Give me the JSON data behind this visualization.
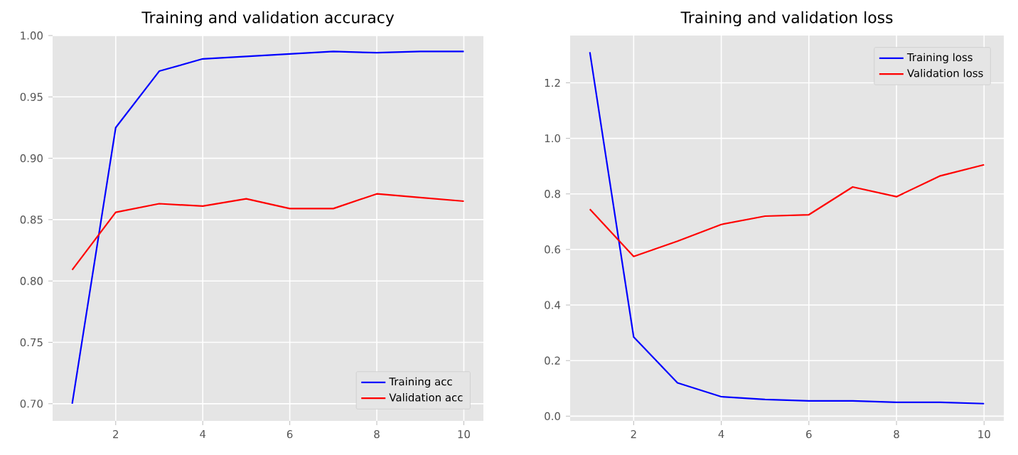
{
  "chart_data": [
    {
      "type": "line",
      "title": "Training and validation accuracy",
      "x": [
        1,
        2,
        3,
        4,
        5,
        6,
        7,
        8,
        9,
        10
      ],
      "series": [
        {
          "name": "Training acc",
          "color": "#0000ff",
          "values": [
            0.7,
            0.925,
            0.971,
            0.981,
            0.983,
            0.985,
            0.987,
            0.986,
            0.987,
            0.987
          ]
        },
        {
          "name": "Validation acc",
          "color": "#ff0000",
          "values": [
            0.809,
            0.856,
            0.863,
            0.861,
            0.867,
            0.859,
            0.859,
            0.871,
            0.868,
            0.865
          ]
        }
      ],
      "xlim": [
        0.55,
        10.45
      ],
      "xticks": [
        2,
        4,
        6,
        8,
        10
      ],
      "ylim": [
        0.686,
        1.0
      ],
      "yticks": [
        {
          "value": 0.7,
          "label": "0.70"
        },
        {
          "value": 0.75,
          "label": "0.75"
        },
        {
          "value": 0.8,
          "label": "0.80"
        },
        {
          "value": 0.85,
          "label": "0.85"
        },
        {
          "value": 0.9,
          "label": "0.90"
        },
        {
          "value": 0.95,
          "label": "0.95"
        },
        {
          "value": 1.0,
          "label": "1.00"
        }
      ],
      "grid": true,
      "legend": "bottom right"
    },
    {
      "type": "line",
      "title": "Training and validation loss",
      "x": [
        1,
        2,
        3,
        4,
        5,
        6,
        7,
        8,
        9,
        10
      ],
      "series": [
        {
          "name": "Training loss",
          "color": "#0000ff",
          "values": [
            1.31,
            0.285,
            0.12,
            0.07,
            0.06,
            0.055,
            0.055,
            0.05,
            0.05,
            0.045
          ]
        },
        {
          "name": "Validation loss",
          "color": "#ff0000",
          "values": [
            0.745,
            0.575,
            0.63,
            0.69,
            0.72,
            0.725,
            0.825,
            0.79,
            0.865,
            0.905
          ]
        }
      ],
      "xlim": [
        0.55,
        10.45
      ],
      "xticks": [
        2,
        4,
        6,
        8,
        10
      ],
      "ylim": [
        -0.017,
        1.37
      ],
      "yticks": [
        {
          "value": 0.0,
          "label": "0.0"
        },
        {
          "value": 0.2,
          "label": "0.2"
        },
        {
          "value": 0.4,
          "label": "0.4"
        },
        {
          "value": 0.6,
          "label": "0.6"
        },
        {
          "value": 0.8,
          "label": "0.8"
        },
        {
          "value": 1.0,
          "label": "1.0"
        },
        {
          "value": 1.2,
          "label": "1.2"
        }
      ],
      "grid": true,
      "legend": "top right"
    }
  ]
}
